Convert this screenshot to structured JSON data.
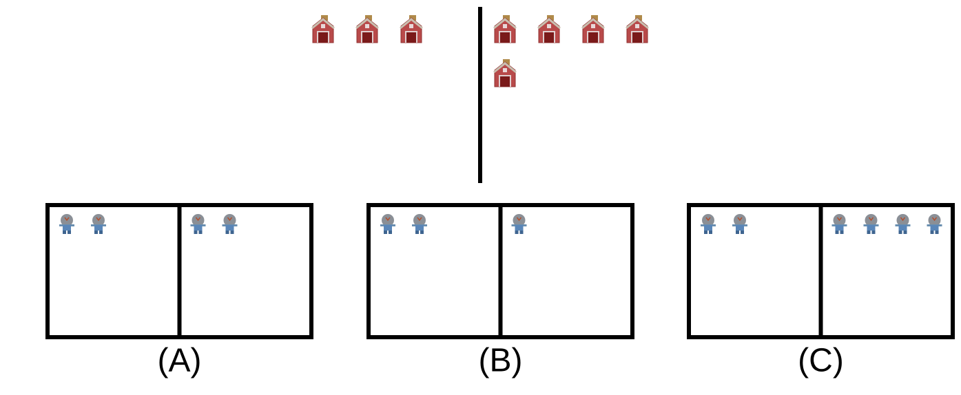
{
  "top": {
    "left": 3,
    "right": 5
  },
  "options": [
    {
      "label": "(A)",
      "left": 2,
      "right": 2
    },
    {
      "label": "(B)",
      "left": 2,
      "right": 1
    },
    {
      "label": "(C)",
      "left": 2,
      "right": 4
    }
  ]
}
